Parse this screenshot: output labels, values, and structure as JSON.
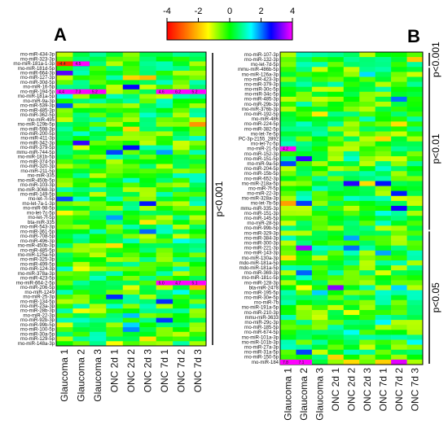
{
  "chart_data": {
    "type": "heatmap",
    "colorbar": {
      "range": [
        -4,
        4
      ],
      "ticks": [
        "-4",
        "-2",
        "0",
        "2",
        "4"
      ],
      "colors": [
        "#ff0000",
        "#ff8000",
        "#ffff00",
        "#00ff00",
        "#00ffff",
        "#0000ff",
        "#ff00ff"
      ]
    },
    "columns": [
      "Glaucoma 1",
      "Glaucoma 2",
      "Glaucoma 3",
      "ONC 2d 1",
      "ONC 2d 2",
      "ONC 2d 3",
      "ONC 7d 1",
      "ONC 7d 2",
      "ONC 7d 3"
    ],
    "panels": [
      {
        "label": "A",
        "rows": [
          "rno-miR-434-3p",
          "rno-miR-323-3p",
          "rno-miR-181a-1-3p",
          "rno-miR-181d-5p",
          "rno-miR-664-3p",
          "rno-miR-127-3p",
          "rno-miR-30d-5p",
          "rno-miR-16-5p",
          "rno-miR-194-5p",
          "rno-miR-181a-5p",
          "rno-miR-9a-3p",
          "rno-miR-539-3p",
          "rno-miR-485-3p",
          "rno-miR-362-5p",
          "rno-miR-495",
          "rno-miR-129b-5p",
          "rno-miR-598-3p",
          "rno-miR-200-5p",
          "rno-miR-411-3p",
          "rno-miR-342-3p",
          "rno-miR-379-5p",
          "mmu-miR-744-5p",
          "rno-miR-181b-5p",
          "rno-miR-374-5p",
          "rno-miR-320-3p",
          "rno-miR-211-5p",
          "rno-miR-335",
          "rno-miR-450b-5p",
          "rno-miR-103-3p",
          "rno-miR-3068-3p",
          "rno-miR-149-5p",
          "rno-let-7i-5p",
          "rno-let-7a-1-3p",
          "rno-miR-98-5p",
          "rno-let-7c-5p",
          "rno-let-7f-5p",
          "bta-miR-335",
          "rno-miR-543-3p",
          "rno-miR-361-5p",
          "rno-miR-708-5p",
          "rno-miR-496-3p",
          "rno-miR-450b-3p",
          "rno-miR-485-5p",
          "rno-miR-125a-5p",
          "rno-miR-325-3p",
          "rno-miR-499-5p",
          "rno-miR-124-3p",
          "rno-miR-378a-3p",
          "rno-miR-423-5p",
          "rno-miR-664-2-5p",
          "rno-miR-206-5p",
          "rno-miR-1249",
          "rno-miR-25-3p",
          "rno-miR-134-5p",
          "rno-miR-23a-3p",
          "rno-miR-28b-3p",
          "rno-miR-22-3p",
          "rno-miR-92b-3p",
          "rno-miR-99b-5p",
          "rno-miR-100-5p",
          "rno-miR-30a-5p",
          "rno-miR-129-5p",
          "rno-miR-148a-3p"
        ],
        "cell_labels": [
          {
            "row": 2,
            "col": 0,
            "text": "-4.4"
          },
          {
            "row": 2,
            "col": 1,
            "text": "4.5"
          },
          {
            "row": 8,
            "col": 0,
            "text": "4.4"
          },
          {
            "row": 8,
            "col": 1,
            "text": "7.3"
          },
          {
            "row": 8,
            "col": 2,
            "text": "5.2"
          },
          {
            "row": 8,
            "col": 6,
            "text": "4.6"
          },
          {
            "row": 8,
            "col": 7,
            "text": "6.2"
          },
          {
            "row": 8,
            "col": 8,
            "text": "5.2"
          },
          {
            "row": 49,
            "col": 6,
            "text": "5.0"
          },
          {
            "row": 49,
            "col": 7,
            "text": "4.7"
          },
          {
            "row": 49,
            "col": 8,
            "text": "5.1"
          }
        ],
        "significance": [
          {
            "label": "p<0.001",
            "from_row": 0,
            "to_row": 62
          }
        ]
      },
      {
        "label": "B",
        "rows": [
          "rno-miR-107-3p",
          "rno-miR-132-3p",
          "rno-let-7d-5p",
          "mmu-miR-486b-5p",
          "rno-miR-126a-3p",
          "rno-miR-423-3p",
          "rno-miR-379-3p",
          "rno-miR-30c-5p",
          "rno-miR-34c-5p",
          "rno-miR-485-3p",
          "rno-miR-29b-3p",
          "rno-miR-376b-3p",
          "rno-miR-192-5p",
          "rno-miR-486",
          "rno-miR-224-5p",
          "rno-miR-382-5p",
          "rno-let-7e-5p",
          "PC-3p-2155_2892",
          "rno-let-7c-5p",
          "rno-miR-21-5p",
          "rno-miR-152-3p",
          "rno-miR-151-5p",
          "rno-miR-9a-5p",
          "rno-miR-204-5p",
          "rno-miR-15b-5p",
          "rno-miR-652-3p",
          "rno-miR-218a-5p",
          "rno-miR-7f-5p",
          "rno-miR-22-3p",
          "rno-miR-328a-3p",
          "rno-let-7b-5p",
          "mmu-miR-335-3p",
          "rno-miR-151-3p",
          "rno-miR-145-5p",
          "rno-miR-28-5p",
          "rno-miR-99b-5p",
          "rno-miR-329-3p",
          "rno-miR-384-3p",
          "rno-miR-300-3p",
          "rno-miR-221-3p",
          "rno-miR-143-3p",
          "rno-miR-130a-3p",
          "mdo-miR-181a-5p",
          "mdo-miR-181a-5p",
          "rno-miR-369-3p",
          "rno-miR-181c-5p",
          "rno-miR-128-3p",
          "bta-miR-2478",
          "rno-miR-195-5p",
          "rno-miR-30e-5p",
          "rno-miR-7b",
          "rno-miR-191a-5p",
          "rno-miR-210-3p",
          "mmu-miR-3633",
          "rno-miR-29c-3p",
          "rno-miR-185-5p",
          "rno-miR-674-5p",
          "rno-miR-101a-3p",
          "rno-miR-101b-3p",
          "rno-miR-27a-3p",
          "rno-miR-31a-5p",
          "rno-miR-150-5p",
          "rno-miR-184"
        ],
        "cell_labels": [
          {
            "row": 19,
            "col": 0,
            "text": "4.2"
          },
          {
            "row": 62,
            "col": 0,
            "text": "7.8"
          },
          {
            "row": 62,
            "col": 1,
            "text": "7.1"
          }
        ],
        "significance": [
          {
            "label": "p<0.001",
            "from_row": 0,
            "to_row": 2
          },
          {
            "label": "p<0.01",
            "from_row": 3,
            "to_row": 35
          },
          {
            "label": "p<0.05",
            "from_row": 36,
            "to_row": 62
          }
        ]
      }
    ]
  }
}
